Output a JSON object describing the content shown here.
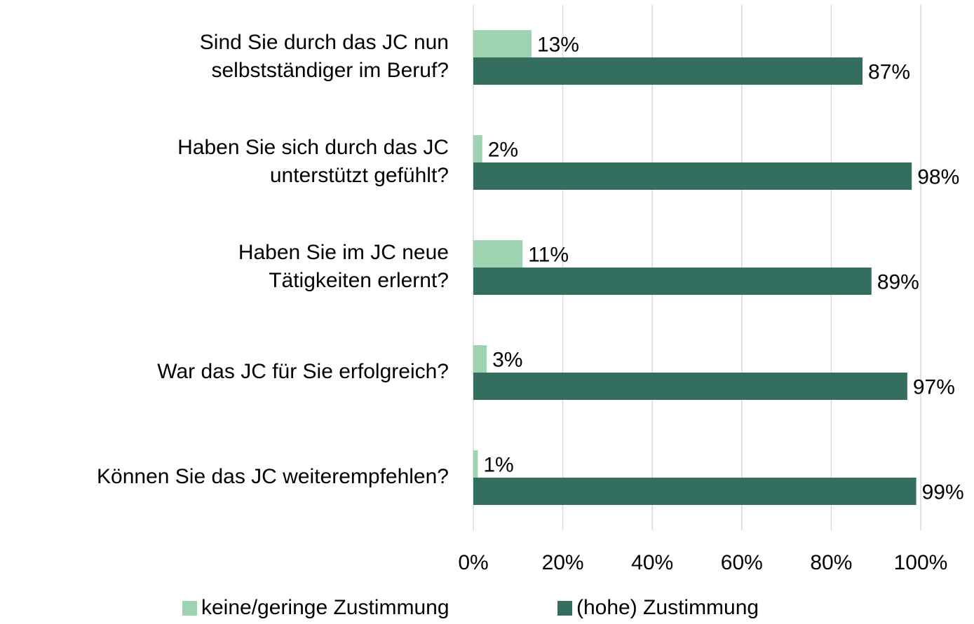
{
  "chart_data": {
    "type": "bar",
    "orientation": "horizontal",
    "categories": [
      [
        "Sind Sie durch das JC nun",
        "selbstständiger im Beruf?"
      ],
      [
        "Haben Sie sich durch das JC",
        "unterstützt gefühlt?"
      ],
      [
        "Haben Sie im JC neue",
        "Tätigkeiten erlernt?"
      ],
      [
        "War das JC für Sie erfolgreich?"
      ],
      [
        "Können Sie das JC weiterempfehlen?"
      ]
    ],
    "series": [
      {
        "name": "keine/geringe Zustimmung",
        "color": "#9dd3b0",
        "values": [
          13,
          2,
          11,
          3,
          1
        ],
        "value_labels": [
          "13%",
          "2%",
          "11%",
          "3%",
          "1%"
        ]
      },
      {
        "name": "(hohe) Zustimmung",
        "color": "#336e5e",
        "values": [
          87,
          98,
          89,
          97,
          99
        ],
        "value_labels": [
          "87%",
          "98%",
          "89%",
          "97%",
          "99%"
        ]
      }
    ],
    "xlim": [
      0,
      100
    ],
    "xticks": [
      {
        "value": 0,
        "label": "0%"
      },
      {
        "value": 20,
        "label": "20%"
      },
      {
        "value": 40,
        "label": "40%"
      },
      {
        "value": 60,
        "label": "60%"
      },
      {
        "value": 80,
        "label": "80%"
      },
      {
        "value": 100,
        "label": "100%"
      }
    ],
    "grid": true,
    "legend": "bottom"
  }
}
